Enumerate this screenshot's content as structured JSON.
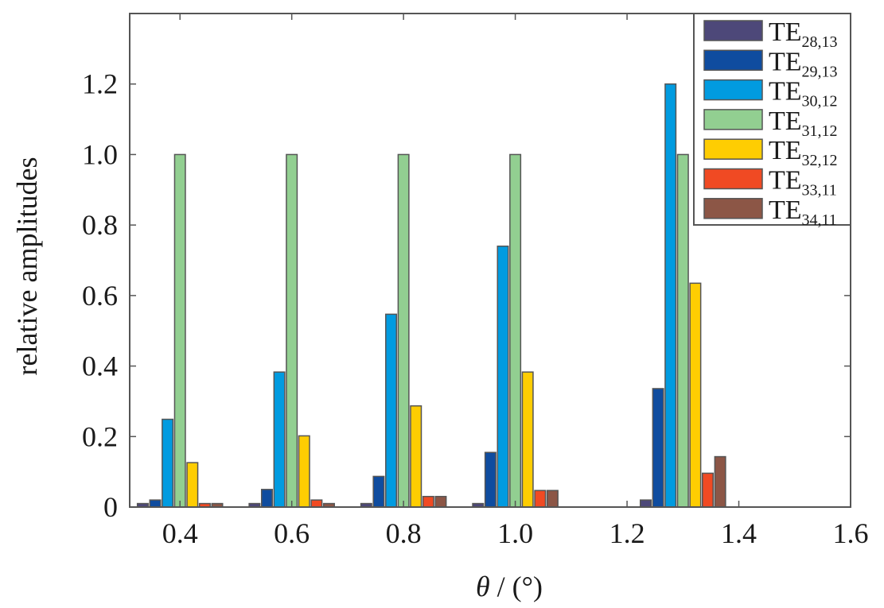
{
  "chart_data": {
    "type": "bar",
    "title": "",
    "xlabel_symbol": "θ",
    "xlabel_rest": " / (°)",
    "ylabel": "relative amplitudes",
    "xlim": [
      0.31,
      1.6
    ],
    "ylim": [
      0,
      1.4
    ],
    "xticks": [
      "0.4",
      "0.6",
      "0.8",
      "1.0",
      "1.2",
      "1.4",
      "1.6"
    ],
    "xtick_values": [
      0.4,
      0.6,
      0.8,
      1.0,
      1.2,
      1.4,
      1.6
    ],
    "yticks": [
      "0",
      "0.2",
      "0.4",
      "0.6",
      "0.8",
      "1.0",
      "1.2"
    ],
    "ytick_values": [
      0,
      0.2,
      0.4,
      0.6,
      0.8,
      1.0,
      1.2
    ],
    "grid": false,
    "legend_position": "top-right",
    "x": [
      0.4,
      0.6,
      0.8,
      1.0,
      1.3
    ],
    "series": [
      {
        "name": "TE",
        "sub": "28,13",
        "color": "#4d4879",
        "values": [
          0.01,
          0.01,
          0.01,
          0.01,
          0.02
        ]
      },
      {
        "name": "TE",
        "sub": "29,13",
        "color": "#0f4c9f",
        "values": [
          0.02,
          0.05,
          0.087,
          0.155,
          0.336
        ]
      },
      {
        "name": "TE",
        "sub": "30,12",
        "color": "#019be0",
        "values": [
          0.249,
          0.383,
          0.547,
          0.74,
          1.2
        ]
      },
      {
        "name": "TE",
        "sub": "31,12",
        "color": "#92cf91",
        "values": [
          1.0,
          1.0,
          1.0,
          1.0,
          1.0
        ]
      },
      {
        "name": "TE",
        "sub": "32,12",
        "color": "#fecd02",
        "values": [
          0.126,
          0.202,
          0.287,
          0.383,
          0.635
        ]
      },
      {
        "name": "TE",
        "sub": "33,11",
        "color": "#f04a23",
        "values": [
          0.01,
          0.02,
          0.03,
          0.047,
          0.096
        ]
      },
      {
        "name": "TE",
        "sub": "34,11",
        "color": "#8c5646",
        "values": [
          0.01,
          0.01,
          0.03,
          0.047,
          0.143
        ]
      }
    ]
  }
}
